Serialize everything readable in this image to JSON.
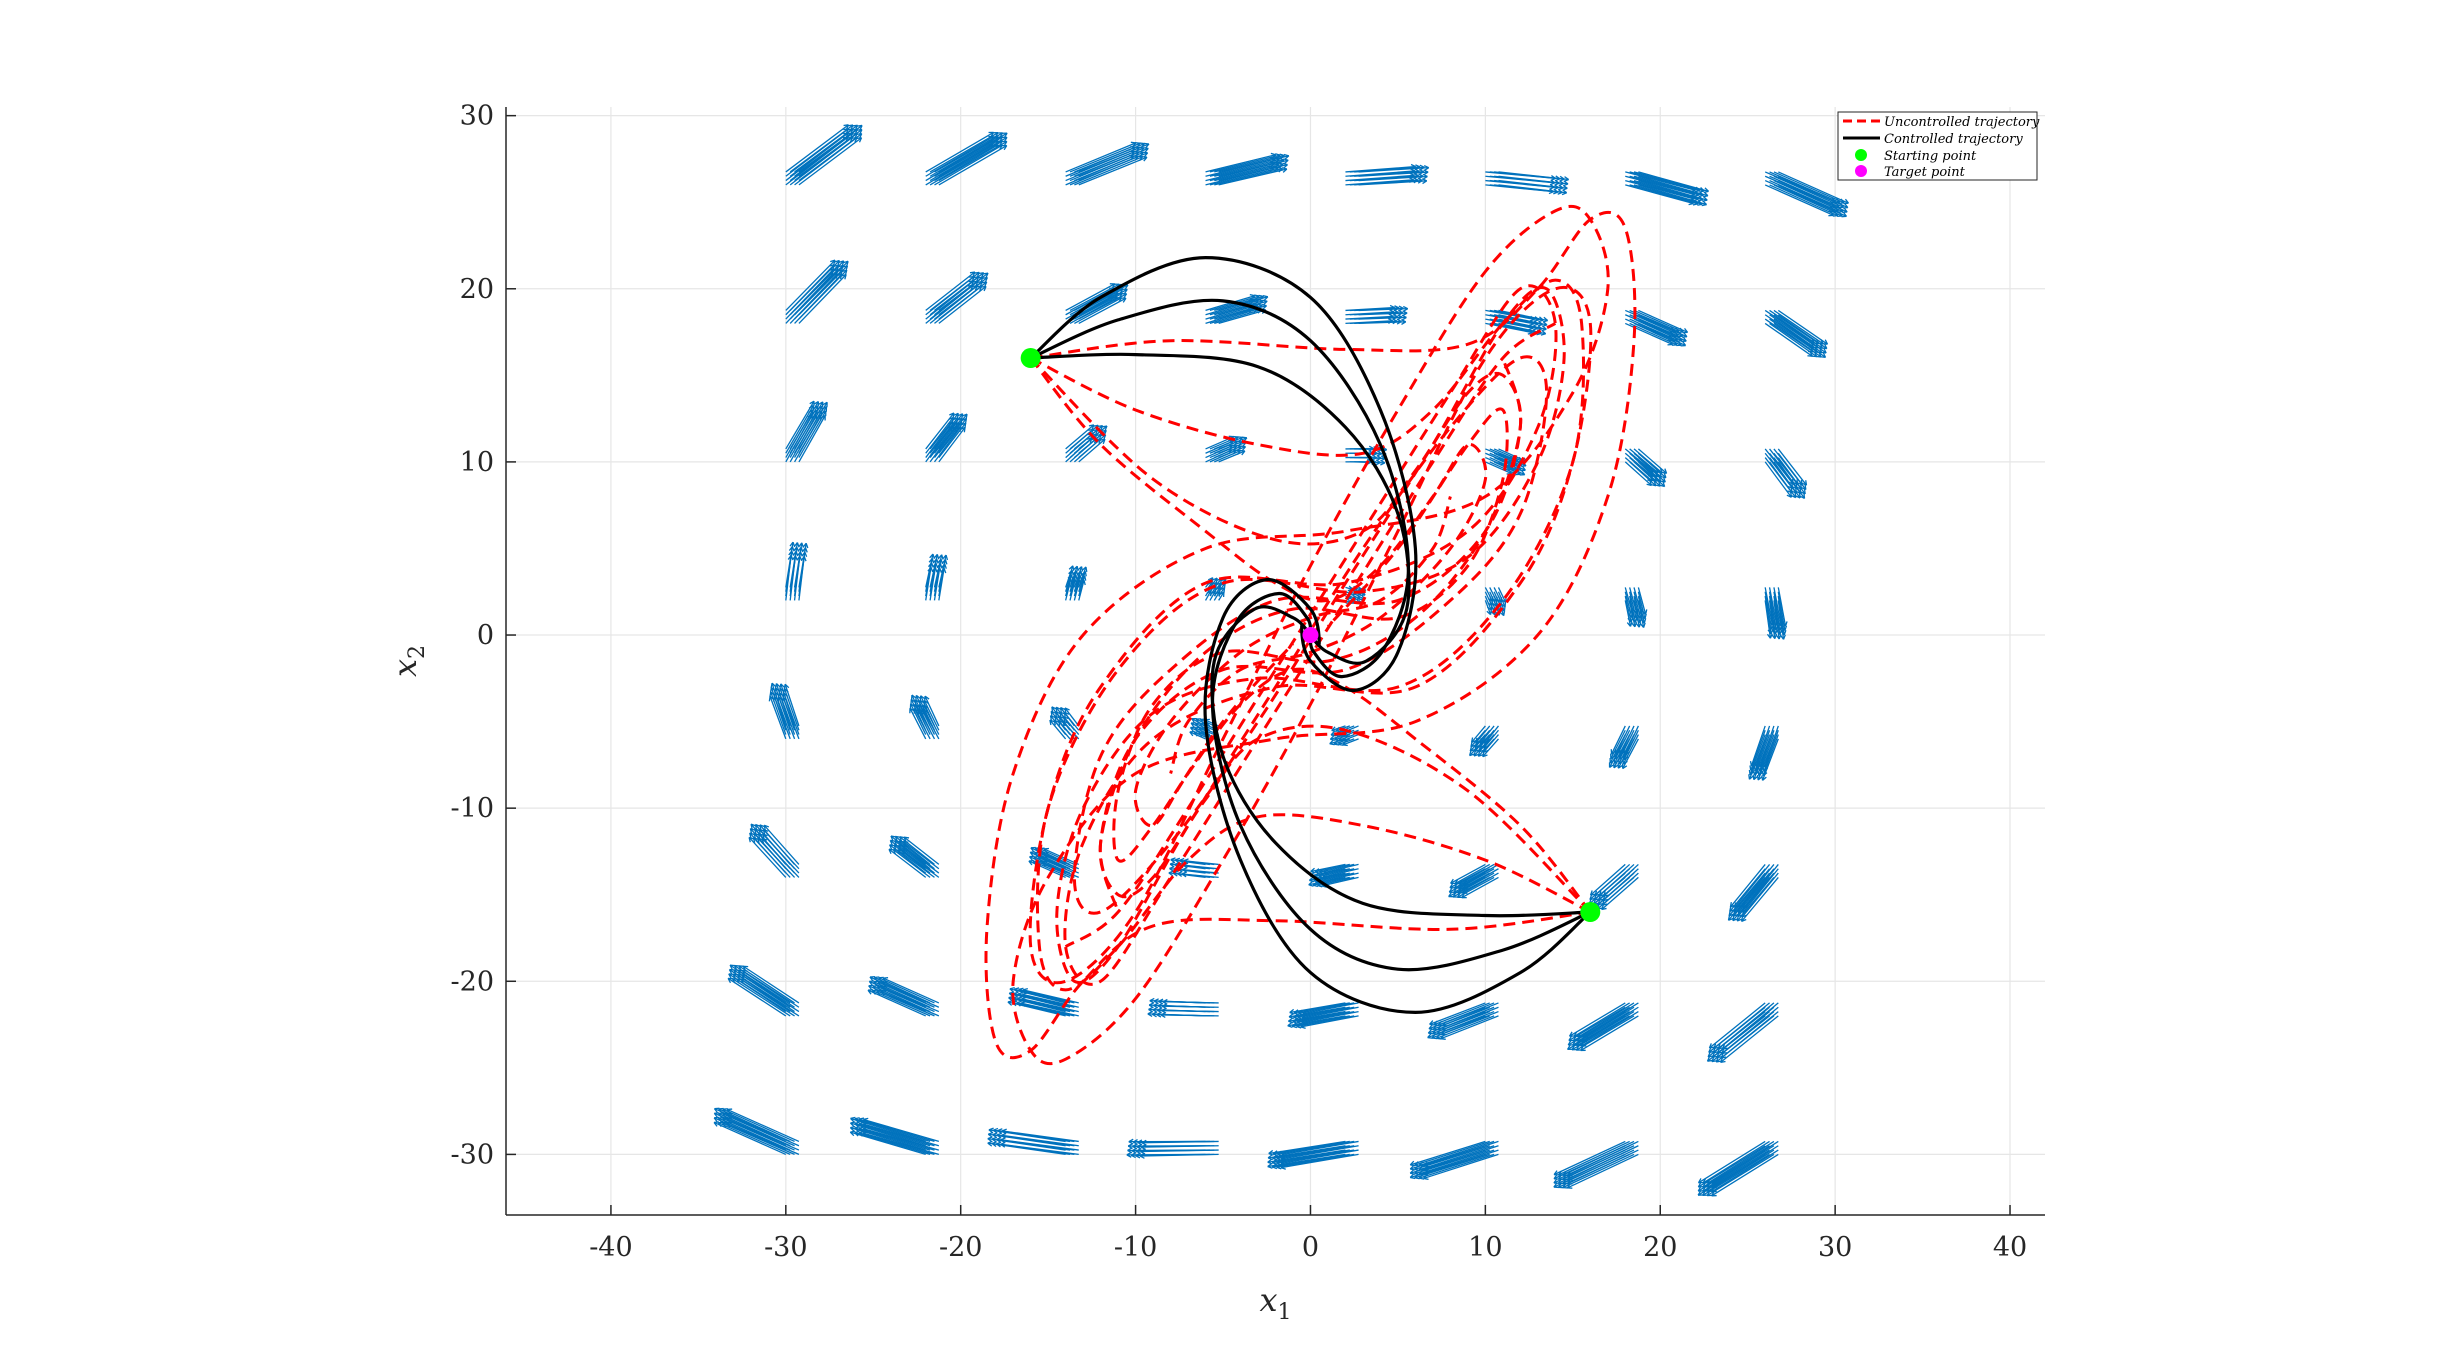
{
  "chart_data": {
    "type": "line",
    "title": "",
    "xlabel": "x",
    "xlabel_sub": "1",
    "ylabel": "x",
    "ylabel_sub": "2",
    "xlim": [
      -46,
      42
    ],
    "ylim": [
      -33.5,
      30.5
    ],
    "xticks": [
      -40,
      -30,
      -20,
      -10,
      0,
      10,
      20,
      30,
      40
    ],
    "yticks": [
      -30,
      -20,
      -10,
      0,
      10,
      20,
      30
    ],
    "grid": true,
    "legend_position": "top-right",
    "legend": [
      {
        "label": "Uncontrolled trajectory",
        "style": "dashed-line",
        "color": "#ff0000"
      },
      {
        "label": "Controlled trajectory",
        "style": "solid-line",
        "color": "#000000"
      },
      {
        "label": "Starting point",
        "style": "marker",
        "color": "#00ff00"
      },
      {
        "label": "Target point",
        "style": "marker",
        "color": "#ff00ff"
      }
    ],
    "colors": {
      "uncontrolled": "#ff0000",
      "controlled": "#000000",
      "start": "#00ff00",
      "target": "#ff00ff",
      "quiver": "#0072bd",
      "grid": "#e6e6e6"
    },
    "starting_points": [
      [
        -16,
        16
      ],
      [
        16,
        -16
      ]
    ],
    "target_point": [
      0,
      0
    ],
    "quiver_grid": {
      "x": [
        -30,
        -22,
        -14,
        -6,
        2,
        10,
        18,
        26
      ],
      "y": [
        -30,
        -22,
        -14,
        -6,
        2,
        10,
        18,
        26
      ]
    },
    "controlled_trajectories": [
      [
        [
          -16,
          16
        ],
        [
          -12,
          19.5
        ],
        [
          -6,
          21.8
        ],
        [
          0,
          19.5
        ],
        [
          4,
          13
        ],
        [
          6,
          5
        ],
        [
          5,
          -1
        ],
        [
          2.5,
          -3.2
        ],
        [
          0,
          -1.5
        ],
        [
          -0.5,
          0.5
        ],
        [
          0,
          0
        ]
      ],
      [
        [
          -16,
          16
        ],
        [
          -11,
          18.2
        ],
        [
          -5,
          19.3
        ],
        [
          0,
          17
        ],
        [
          4,
          11
        ],
        [
          5.6,
          4
        ],
        [
          4.2,
          -0.8
        ],
        [
          1.8,
          -2.4
        ],
        [
          0.2,
          -1
        ],
        [
          0,
          0
        ]
      ],
      [
        [
          -16,
          16
        ],
        [
          -10,
          16.2
        ],
        [
          -3,
          15.5
        ],
        [
          2,
          12
        ],
        [
          5,
          7
        ],
        [
          5.5,
          1.5
        ],
        [
          3.2,
          -1.5
        ],
        [
          1,
          -1
        ],
        [
          0,
          0
        ]
      ],
      [
        [
          16,
          -16
        ],
        [
          12,
          -19.5
        ],
        [
          6,
          -21.8
        ],
        [
          0,
          -19.5
        ],
        [
          -4,
          -13
        ],
        [
          -6,
          -5
        ],
        [
          -5,
          1
        ],
        [
          -2.5,
          3.2
        ],
        [
          0,
          1.5
        ],
        [
          0.5,
          -0.5
        ],
        [
          0,
          0
        ]
      ],
      [
        [
          16,
          -16
        ],
        [
          11,
          -18.2
        ],
        [
          5,
          -19.3
        ],
        [
          0,
          -17
        ],
        [
          -4,
          -11
        ],
        [
          -5.6,
          -4
        ],
        [
          -4.2,
          0.8
        ],
        [
          -1.8,
          2.4
        ],
        [
          -0.2,
          1
        ],
        [
          0,
          0
        ]
      ],
      [
        [
          16,
          -16
        ],
        [
          10,
          -16.2
        ],
        [
          3,
          -15.5
        ],
        [
          -2,
          -12
        ],
        [
          -5,
          -7
        ],
        [
          -5.5,
          -1.5
        ],
        [
          -3.2,
          1.5
        ],
        [
          -1,
          1
        ],
        [
          0,
          0
        ]
      ]
    ],
    "uncontrolled_trajectories": [
      [
        [
          -16,
          16
        ],
        [
          -8,
          17
        ],
        [
          2,
          16.5
        ],
        [
          9,
          16.8
        ],
        [
          13,
          20
        ],
        [
          16,
          24
        ],
        [
          18,
          23.5
        ],
        [
          18.5,
          17
        ],
        [
          17,
          8
        ],
        [
          13,
          0
        ],
        [
          6,
          -5
        ],
        [
          -2,
          -6
        ],
        [
          -10,
          -8
        ],
        [
          -15,
          -14
        ],
        [
          -17,
          -20
        ],
        [
          -16,
          -24
        ],
        [
          -14,
          -24.5
        ],
        [
          -10,
          -21
        ],
        [
          -5,
          -13
        ],
        [
          0,
          -4
        ],
        [
          5,
          6
        ],
        [
          10,
          16
        ],
        [
          14,
          20
        ],
        [
          16,
          18
        ],
        [
          15,
          10
        ],
        [
          12,
          3
        ],
        [
          6,
          -3
        ],
        [
          -2,
          -3
        ],
        [
          -9,
          -6
        ],
        [
          -13,
          -12
        ],
        [
          -14,
          -18
        ],
        [
          -12,
          -20
        ],
        [
          -8,
          -14
        ],
        [
          -3,
          -6
        ],
        [
          2,
          2
        ],
        [
          7,
          10
        ],
        [
          11,
          16
        ],
        [
          14,
          18
        ]
      ],
      [
        [
          -16,
          16
        ],
        [
          -10,
          13
        ],
        [
          -3,
          11
        ],
        [
          3,
          10.5
        ],
        [
          7,
          13
        ],
        [
          11,
          18
        ],
        [
          14,
          20.5
        ],
        [
          15.5,
          18
        ],
        [
          15,
          10
        ],
        [
          11,
          2
        ],
        [
          5,
          -3
        ],
        [
          -3,
          -2.5
        ],
        [
          -9,
          -4.5
        ],
        [
          -13,
          -10
        ],
        [
          -14.5,
          -16
        ],
        [
          -13.5,
          -20
        ],
        [
          -11,
          -18
        ],
        [
          -7,
          -11
        ],
        [
          -2,
          -3
        ],
        [
          3,
          5
        ],
        [
          8,
          12
        ],
        [
          12,
          16
        ],
        [
          13.5,
          14
        ],
        [
          12,
          7
        ],
        [
          8,
          2
        ],
        [
          2,
          -2
        ],
        [
          -5,
          -2
        ],
        [
          -10,
          -6
        ],
        [
          -12,
          -12
        ],
        [
          -11,
          -16
        ]
      ],
      [
        [
          -16,
          16
        ],
        [
          -9,
          9
        ],
        [
          -2,
          5.5
        ],
        [
          3,
          6
        ],
        [
          6,
          9.5
        ],
        [
          9,
          14
        ],
        [
          11,
          15
        ],
        [
          12,
          12
        ],
        [
          10,
          6
        ],
        [
          6,
          1
        ],
        [
          1,
          -1.5
        ],
        [
          -5,
          -1
        ],
        [
          -9,
          -4
        ],
        [
          -11,
          -9
        ],
        [
          -11,
          -13
        ],
        [
          -9,
          -11
        ],
        [
          -5,
          -5
        ],
        [
          -1,
          -0.5
        ]
      ],
      [
        [
          -16,
          16
        ],
        [
          -12,
          11
        ],
        [
          -6,
          6
        ],
        [
          -2,
          3
        ],
        [
          1,
          2
        ],
        [
          4,
          4
        ],
        [
          7,
          8
        ],
        [
          9,
          11
        ],
        [
          10,
          9
        ],
        [
          8,
          5
        ],
        [
          4,
          1
        ],
        [
          0,
          -1
        ],
        [
          -4,
          -2
        ],
        [
          -7,
          -5
        ],
        [
          -8,
          -8
        ]
      ],
      [
        [
          16,
          -16
        ],
        [
          8,
          -17
        ],
        [
          -2,
          -16.5
        ],
        [
          -9,
          -16.8
        ],
        [
          -13,
          -20
        ],
        [
          -16,
          -24
        ],
        [
          -18,
          -23.5
        ],
        [
          -18.5,
          -17
        ],
        [
          -17,
          -8
        ],
        [
          -13,
          0
        ],
        [
          -6,
          5
        ],
        [
          2,
          6
        ],
        [
          10,
          8
        ],
        [
          15,
          14
        ],
        [
          17,
          20
        ],
        [
          16,
          24
        ],
        [
          14,
          24.5
        ],
        [
          10,
          21
        ],
        [
          5,
          13
        ],
        [
          0,
          4
        ],
        [
          -5,
          -6
        ],
        [
          -10,
          -16
        ],
        [
          -14,
          -20
        ],
        [
          -16,
          -18
        ],
        [
          -15,
          -10
        ],
        [
          -12,
          -3
        ],
        [
          -6,
          3
        ],
        [
          2,
          3
        ],
        [
          9,
          6
        ],
        [
          13,
          12
        ],
        [
          14,
          18
        ],
        [
          12,
          20
        ],
        [
          8,
          14
        ],
        [
          3,
          6
        ],
        [
          -2,
          -2
        ],
        [
          -7,
          -10
        ],
        [
          -11,
          -16
        ],
        [
          -14,
          -18
        ]
      ],
      [
        [
          16,
          -16
        ],
        [
          10,
          -13
        ],
        [
          3,
          -11
        ],
        [
          -3,
          -10.5
        ],
        [
          -7,
          -13
        ],
        [
          -11,
          -18
        ],
        [
          -14,
          -20.5
        ],
        [
          -15.5,
          -18
        ],
        [
          -15,
          -10
        ],
        [
          -11,
          -2
        ],
        [
          -5,
          3
        ],
        [
          3,
          2.5
        ],
        [
          9,
          4.5
        ],
        [
          13,
          10
        ],
        [
          14.5,
          16
        ],
        [
          13.5,
          20
        ],
        [
          11,
          18
        ],
        [
          7,
          11
        ],
        [
          2,
          3
        ],
        [
          -3,
          -5
        ],
        [
          -8,
          -12
        ],
        [
          -12,
          -16
        ],
        [
          -13.5,
          -14
        ],
        [
          -12,
          -7
        ],
        [
          -8,
          -2
        ],
        [
          -2,
          2
        ],
        [
          5,
          2
        ],
        [
          10,
          6
        ],
        [
          12,
          12
        ],
        [
          11,
          16
        ]
      ],
      [
        [
          16,
          -16
        ],
        [
          9,
          -9
        ],
        [
          2,
          -5.5
        ],
        [
          -3,
          -6
        ],
        [
          -6,
          -9.5
        ],
        [
          -9,
          -14
        ],
        [
          -11,
          -15
        ],
        [
          -12,
          -12
        ],
        [
          -10,
          -6
        ],
        [
          -6,
          -1
        ],
        [
          -1,
          1.5
        ],
        [
          5,
          1
        ],
        [
          9,
          4
        ],
        [
          11,
          9
        ],
        [
          11,
          13
        ],
        [
          9,
          11
        ],
        [
          5,
          5
        ],
        [
          1,
          0.5
        ]
      ],
      [
        [
          16,
          -16
        ],
        [
          12,
          -11
        ],
        [
          6,
          -6
        ],
        [
          2,
          -3
        ],
        [
          -1,
          -2
        ],
        [
          -4,
          -4
        ],
        [
          -7,
          -8
        ],
        [
          -9,
          -11
        ],
        [
          -10,
          -9
        ],
        [
          -8,
          -5
        ],
        [
          -4,
          -1
        ],
        [
          0,
          1
        ],
        [
          4,
          2
        ],
        [
          7,
          5
        ],
        [
          8,
          8
        ]
      ]
    ]
  }
}
